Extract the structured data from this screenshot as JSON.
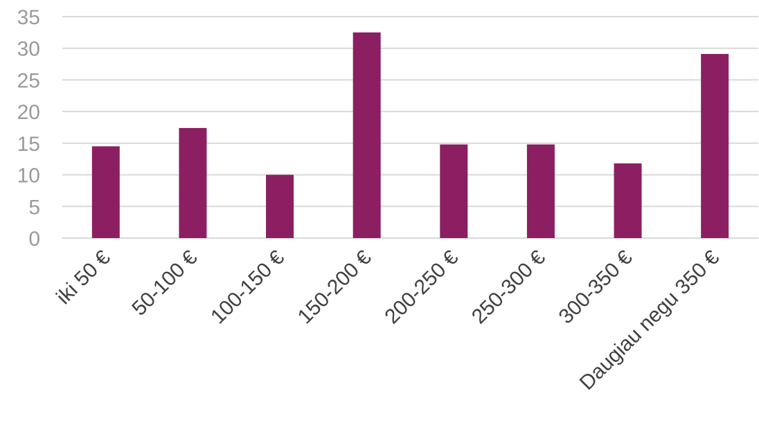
{
  "chart_data": {
    "type": "bar",
    "categories": [
      "iki 50 €",
      "50-100 €",
      "100-150 €",
      "150-200 €",
      "200-250 €",
      "250-300 €",
      "300-350 €",
      "Daugiau negu 350 €"
    ],
    "values": [
      14.5,
      17.4,
      10.0,
      32.5,
      14.8,
      14.8,
      11.8,
      29.1
    ],
    "ylim": [
      0,
      35
    ],
    "yticks": [
      0,
      5,
      10,
      15,
      20,
      25,
      30,
      35
    ],
    "grid": true,
    "legend": "none",
    "colors": {
      "bar": "#8b1f62"
    }
  }
}
